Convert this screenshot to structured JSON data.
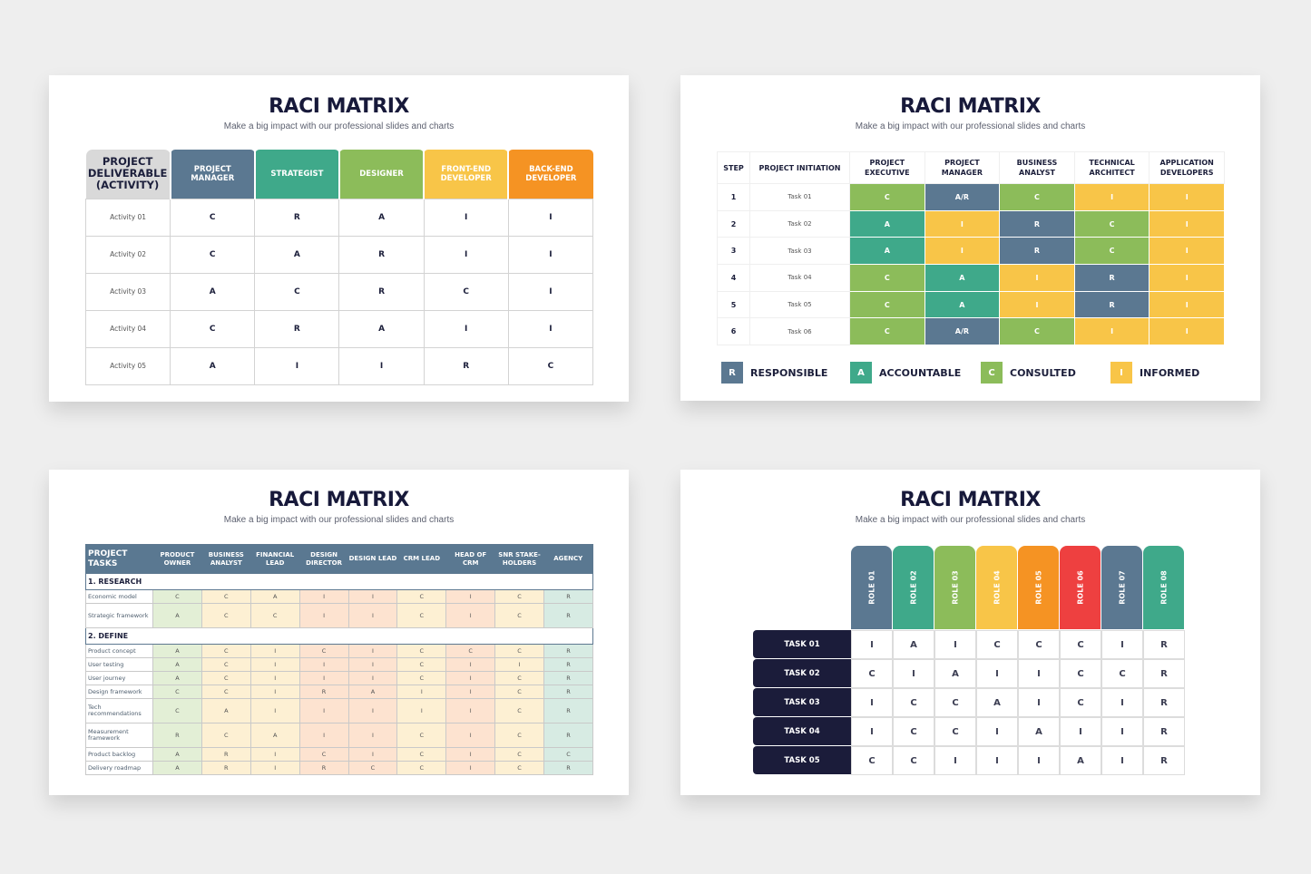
{
  "title": "RACI MATRIX",
  "subtitle": "Make a big impact with our professional slides and charts",
  "colors": {
    "navy": "#5b7891",
    "teal": "#3fa98a",
    "green": "#8cbc5a",
    "yellow": "#f8c548",
    "orange": "#f59323",
    "red": "#ee4040",
    "dark": "#1b1c3a"
  },
  "slide1": {
    "corner": "PROJECT DELIVERABLE (ACTIVITY)",
    "roles": [
      {
        "label": "PROJECT MANAGER",
        "color": "#5b7891"
      },
      {
        "label": "STRATEGIST",
        "color": "#3fa98a"
      },
      {
        "label": "DESIGNER",
        "color": "#8cbc5a"
      },
      {
        "label": "FRONT-END DEVELOPER",
        "color": "#f8c548"
      },
      {
        "label": "BACK-END DEVELOPER",
        "color": "#f59323"
      }
    ],
    "rows": [
      {
        "activity": "Activity 01",
        "values": [
          "C",
          "R",
          "A",
          "I",
          "I"
        ]
      },
      {
        "activity": "Activity 02",
        "values": [
          "C",
          "A",
          "R",
          "I",
          "I"
        ]
      },
      {
        "activity": "Activity 03",
        "values": [
          "A",
          "C",
          "R",
          "C",
          "I"
        ]
      },
      {
        "activity": "Activity 04",
        "values": [
          "C",
          "R",
          "A",
          "I",
          "I"
        ]
      },
      {
        "activity": "Activity 05",
        "values": [
          "A",
          "I",
          "I",
          "R",
          "C"
        ]
      }
    ]
  },
  "slide2": {
    "headers": [
      "STEP",
      "PROJECT INITIATION",
      "PROJECT EXECUTIVE",
      "PROJECT MANAGER",
      "BUSINESS ANALYST",
      "TECHNICAL ARCHITECT",
      "APPLICATION DEVELOPERS"
    ],
    "rows": [
      {
        "step": "1",
        "task": "Task 01",
        "values": [
          "C",
          "A/R",
          "C",
          "I",
          "I"
        ]
      },
      {
        "step": "2",
        "task": "Task 02",
        "values": [
          "A",
          "I",
          "R",
          "C",
          "I"
        ]
      },
      {
        "step": "3",
        "task": "Task 03",
        "values": [
          "A",
          "I",
          "R",
          "C",
          "I"
        ]
      },
      {
        "step": "4",
        "task": "Task 04",
        "values": [
          "C",
          "A",
          "I",
          "R",
          "I"
        ]
      },
      {
        "step": "5",
        "task": "Task 05",
        "values": [
          "C",
          "A",
          "I",
          "R",
          "I"
        ]
      },
      {
        "step": "6",
        "task": "Task 06",
        "values": [
          "C",
          "A/R",
          "C",
          "I",
          "I"
        ]
      }
    ],
    "legend": [
      {
        "key": "R",
        "label": "RESPONSIBLE",
        "color": "#5b7891"
      },
      {
        "key": "A",
        "label": "ACCOUNTABLE",
        "color": "#3fa98a"
      },
      {
        "key": "C",
        "label": "CONSULTED",
        "color": "#8cbc5a"
      },
      {
        "key": "I",
        "label": "INFORMED",
        "color": "#f8c548"
      }
    ]
  },
  "slide3": {
    "headers": [
      "PROJECT TASKS",
      "PRODUCT OWNER",
      "BUSINESS ANALYST",
      "FINANCIAL LEAD",
      "DESIGN DIRECTOR",
      "DESIGN LEAD",
      "CRM LEAD",
      "HEAD OF CRM",
      "SNR STAKE-HOLDERS",
      "AGENCY"
    ],
    "sections": [
      {
        "name": "1. RESEARCH",
        "rows": [
          {
            "task": "Economic model",
            "values": [
              "C",
              "C",
              "A",
              "I",
              "I",
              "C",
              "I",
              "C",
              "R"
            ]
          },
          {
            "task": "Strategic framework",
            "values": [
              "A",
              "C",
              "C",
              "I",
              "I",
              "C",
              "I",
              "C",
              "R"
            ]
          }
        ]
      },
      {
        "name": "2. DEFINE",
        "rows": [
          {
            "task": "Product concept",
            "values": [
              "A",
              "C",
              "I",
              "C",
              "I",
              "C",
              "C",
              "C",
              "R"
            ]
          },
          {
            "task": "User testing",
            "values": [
              "A",
              "C",
              "I",
              "I",
              "I",
              "C",
              "I",
              "I",
              "R"
            ]
          },
          {
            "task": "User journey",
            "values": [
              "A",
              "C",
              "I",
              "I",
              "I",
              "C",
              "I",
              "C",
              "R"
            ]
          },
          {
            "task": "Design framework",
            "values": [
              "C",
              "C",
              "I",
              "R",
              "A",
              "I",
              "I",
              "C",
              "R"
            ]
          },
          {
            "task": "Tech recommendations",
            "values": [
              "C",
              "A",
              "I",
              "I",
              "I",
              "I",
              "I",
              "C",
              "R"
            ]
          },
          {
            "task": "Measurement framework",
            "values": [
              "R",
              "C",
              "A",
              "I",
              "I",
              "C",
              "I",
              "C",
              "R"
            ]
          },
          {
            "task": "Product backlog",
            "values": [
              "A",
              "R",
              "I",
              "C",
              "I",
              "C",
              "I",
              "C",
              "C"
            ]
          },
          {
            "task": "Delivery roadmap",
            "values": [
              "A",
              "R",
              "I",
              "R",
              "C",
              "C",
              "I",
              "C",
              "R"
            ]
          }
        ]
      }
    ]
  },
  "slide4": {
    "roles": [
      {
        "label": "ROLE 01",
        "color": "#5b7891"
      },
      {
        "label": "ROLE 02",
        "color": "#3fa98a"
      },
      {
        "label": "ROLE 03",
        "color": "#8cbc5a"
      },
      {
        "label": "ROLE 04",
        "color": "#f8c548"
      },
      {
        "label": "ROLE 05",
        "color": "#f59323"
      },
      {
        "label": "ROLE 06",
        "color": "#ee4040"
      },
      {
        "label": "ROLE 07",
        "color": "#5b7891"
      },
      {
        "label": "ROLE 08",
        "color": "#3fa98a"
      }
    ],
    "tasks": [
      {
        "label": "TASK 01",
        "values": [
          "I",
          "A",
          "I",
          "C",
          "C",
          "C",
          "I",
          "R"
        ]
      },
      {
        "label": "TASK 02",
        "values": [
          "C",
          "I",
          "A",
          "I",
          "I",
          "C",
          "C",
          "R"
        ]
      },
      {
        "label": "TASK 03",
        "values": [
          "I",
          "C",
          "C",
          "A",
          "I",
          "C",
          "I",
          "R"
        ]
      },
      {
        "label": "TASK 04",
        "values": [
          "I",
          "C",
          "C",
          "I",
          "A",
          "I",
          "I",
          "R"
        ]
      },
      {
        "label": "TASK 05",
        "values": [
          "C",
          "C",
          "I",
          "I",
          "I",
          "A",
          "I",
          "R"
        ]
      }
    ]
  }
}
